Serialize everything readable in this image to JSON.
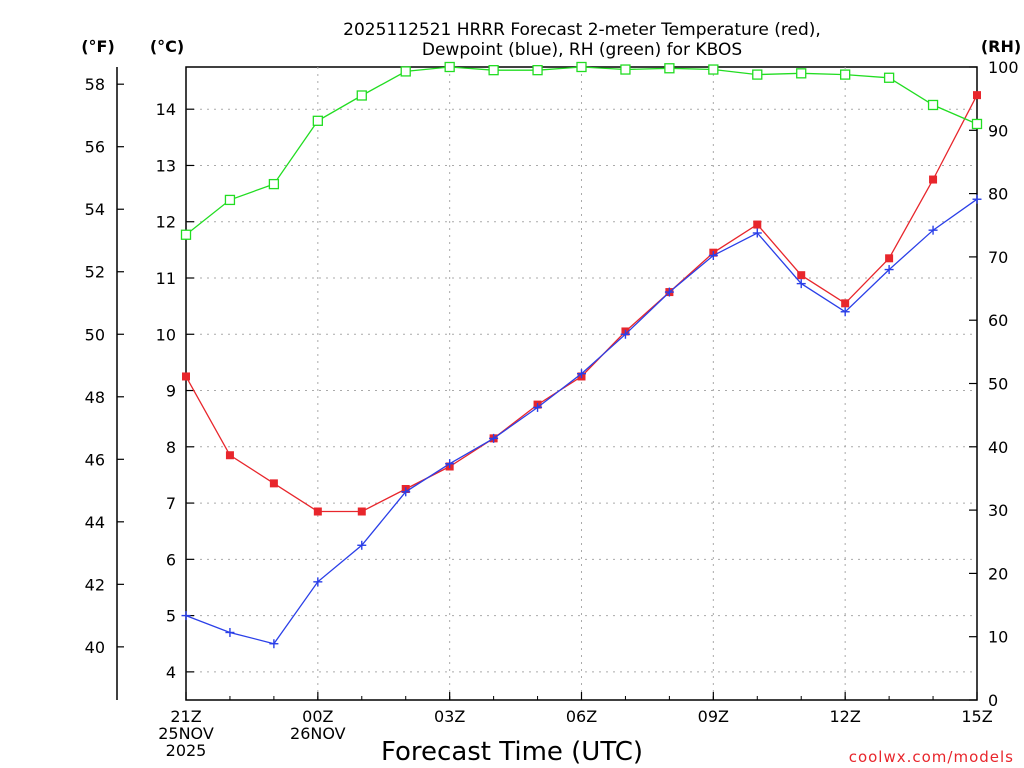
{
  "chart_data": {
    "type": "line",
    "title_line1": "2025112521 HRRR Forecast 2-meter Temperature (red),",
    "title_line2": "Dewpoint (blue), RH (green) for KBOS",
    "xlabel": "Forecast Time (UTC)",
    "credit": "coolwx.com/models",
    "y_left_f_label": "(°F)",
    "y_left_c_label": "(°C)",
    "y_right_label": "(RH)",
    "x_hours": [
      0,
      1,
      2,
      3,
      4,
      5,
      6,
      7,
      8,
      9,
      10,
      11,
      12,
      13,
      14,
      15,
      16,
      17,
      18
    ],
    "x_ticks": [
      {
        "hour": 0,
        "lines": [
          "21Z",
          "25NOV",
          "2025"
        ]
      },
      {
        "hour": 3,
        "lines": [
          "00Z",
          "26NOV"
        ]
      },
      {
        "hour": 6,
        "lines": [
          "03Z"
        ]
      },
      {
        "hour": 9,
        "lines": [
          "06Z"
        ]
      },
      {
        "hour": 12,
        "lines": [
          "09Z"
        ]
      },
      {
        "hour": 15,
        "lines": [
          "12Z"
        ]
      },
      {
        "hour": 18,
        "lines": [
          "15Z"
        ]
      }
    ],
    "celsius_axis": {
      "min": 3.5,
      "max": 14.75,
      "ticks": [
        4,
        5,
        6,
        7,
        8,
        9,
        10,
        11,
        12,
        13,
        14
      ]
    },
    "fahrenheit_ticks": [
      40,
      42,
      44,
      46,
      48,
      50,
      52,
      54,
      56,
      58
    ],
    "rh_axis": {
      "min": 0,
      "max": 100,
      "ticks": [
        0,
        10,
        20,
        30,
        40,
        50,
        60,
        70,
        80,
        90,
        100
      ]
    },
    "series": [
      {
        "name": "Temperature (°C)",
        "color": "#e8262c",
        "marker": "filled-square",
        "values": [
          9.25,
          7.85,
          7.35,
          6.85,
          6.85,
          7.25,
          7.65,
          8.15,
          8.75,
          9.25,
          10.05,
          10.75,
          11.45,
          11.95,
          11.05,
          10.55,
          11.35,
          12.75,
          14.25
        ]
      },
      {
        "name": "Dewpoint (°C)",
        "color": "#2a3fe8",
        "marker": "plus",
        "values": [
          5.0,
          4.7,
          4.5,
          5.6,
          6.25,
          7.2,
          7.7,
          8.15,
          8.7,
          9.3,
          10.0,
          10.75,
          11.4,
          11.8,
          10.9,
          10.4,
          11.15,
          11.85,
          12.4
        ]
      },
      {
        "name": "RH (%)",
        "color": "#22dd22",
        "marker": "open-square",
        "values": [
          73.5,
          79,
          81.5,
          91.5,
          95.5,
          99.3,
          100,
          99.5,
          99.5,
          100,
          99.6,
          99.8,
          99.6,
          98.8,
          99,
          98.8,
          98.3,
          94,
          91
        ]
      }
    ]
  }
}
